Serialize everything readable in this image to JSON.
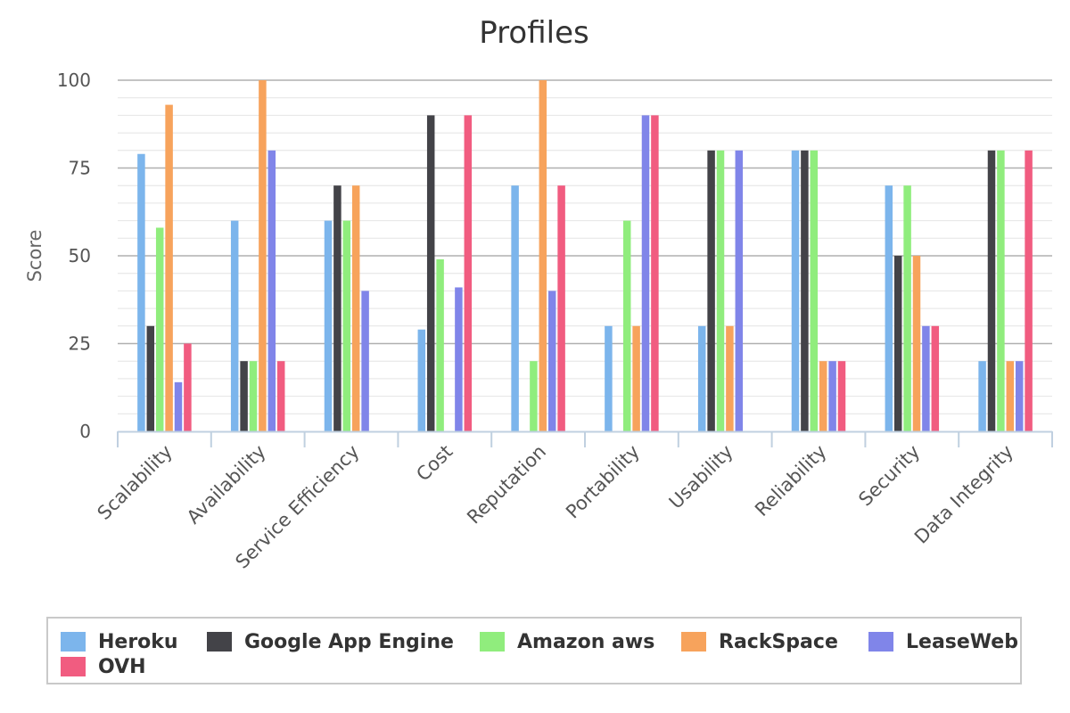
{
  "chart_data": {
    "type": "bar",
    "title": "Profiles",
    "xlabel": "",
    "ylabel": "Score",
    "ylim": [
      0,
      100
    ],
    "yticks": [
      0,
      25,
      50,
      75,
      100
    ],
    "grid": true,
    "legend_position": "bottom",
    "categories": [
      "Scalability",
      "Availability",
      "Service Efficiency",
      "Cost",
      "Reputation",
      "Portability",
      "Usability",
      "Reliability",
      "Security",
      "Data Integrity"
    ],
    "series": [
      {
        "name": "Heroku",
        "color": "#7cb5ec",
        "values": [
          79,
          60,
          60,
          29,
          70,
          30,
          30,
          80,
          70,
          20
        ]
      },
      {
        "name": "Google App Engine",
        "color": "#434348",
        "values": [
          30,
          20,
          70,
          90,
          0,
          0,
          80,
          80,
          50,
          80
        ]
      },
      {
        "name": "Amazon aws",
        "color": "#90ed7d",
        "values": [
          58,
          20,
          60,
          49,
          20,
          60,
          80,
          80,
          70,
          80
        ]
      },
      {
        "name": "RackSpace",
        "color": "#f7a35c",
        "values": [
          93,
          100,
          70,
          0,
          100,
          30,
          30,
          20,
          50,
          20
        ]
      },
      {
        "name": "LeaseWeb",
        "color": "#8085e9",
        "values": [
          14,
          80,
          40,
          41,
          40,
          90,
          80,
          20,
          30,
          20
        ]
      },
      {
        "name": "OVH",
        "color": "#f15c80",
        "values": [
          25,
          20,
          0,
          90,
          70,
          90,
          0,
          20,
          30,
          80
        ]
      }
    ]
  }
}
